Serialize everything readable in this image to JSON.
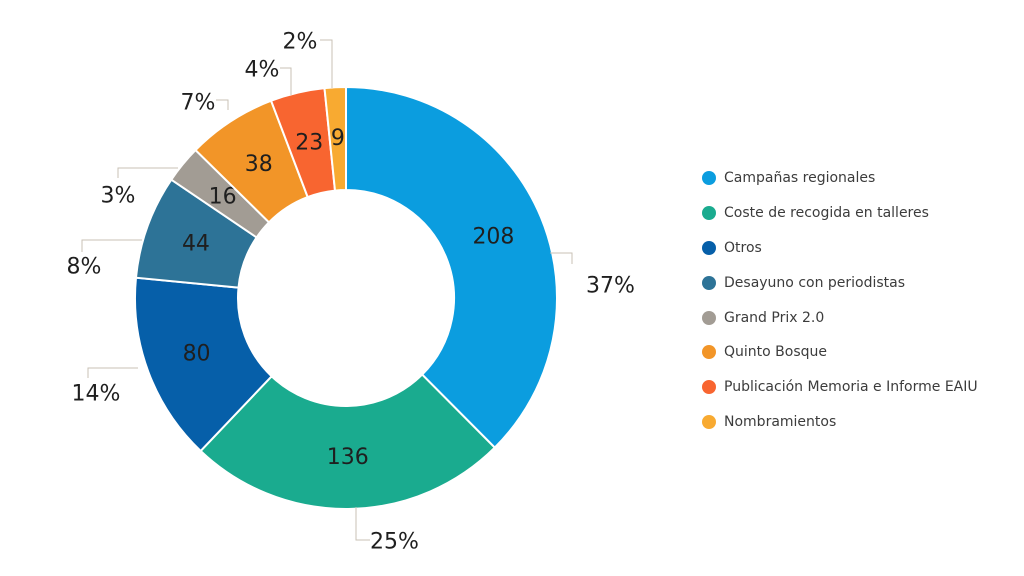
{
  "chart_data": {
    "type": "pie",
    "variant": "donut",
    "legend_position": "right",
    "slices": [
      {
        "label": "Campañas regionales",
        "value": 208,
        "value_label": "208",
        "percent_label": "37%",
        "color": "#0b9ddf"
      },
      {
        "label": "Coste de recogida en talleres",
        "value": 136,
        "value_label": "136",
        "percent_label": "25%",
        "color": "#1aab8f"
      },
      {
        "label": "Otros",
        "value": 80,
        "value_label": "80",
        "percent_label": "14%",
        "color": "#065fa9"
      },
      {
        "label": "Desayuno con periodistas",
        "value": 44,
        "value_label": "44",
        "percent_label": "8%",
        "color": "#2d7397"
      },
      {
        "label": "Grand Prix 2.0",
        "value": 16,
        "value_label": "16",
        "percent_label": "3%",
        "color": "#a29c94"
      },
      {
        "label": "Quinto Bosque",
        "value": 38,
        "value_label": "38",
        "percent_label": "7%",
        "color": "#f29528"
      },
      {
        "label": "Publicación Memoria e Informe EAIU",
        "value": 23,
        "value_label": "23",
        "percent_label": "4%",
        "color": "#f86530"
      },
      {
        "label": "Nombramientos",
        "value": 9,
        "value_label": "9",
        "percent_label": "2%",
        "color": "#f8aa31"
      }
    ]
  }
}
